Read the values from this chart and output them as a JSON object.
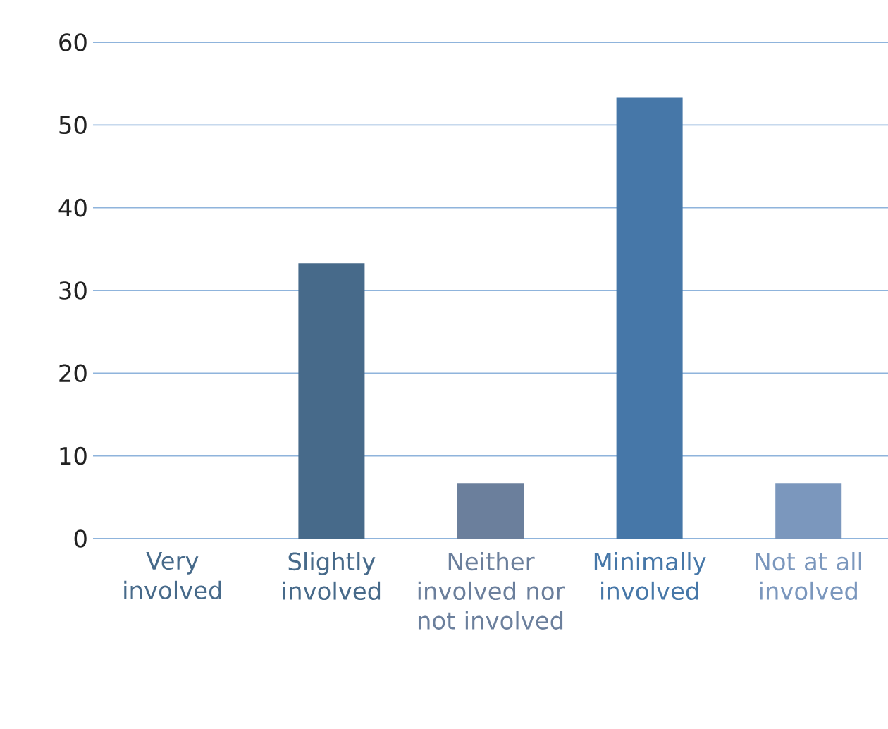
{
  "chart_data": {
    "type": "bar",
    "categories": [
      "Very involved",
      "Slightly involved",
      "Neither involved nor not involved",
      "Minimally involved",
      "Not at all involved"
    ],
    "values": [
      0,
      33.3,
      6.7,
      53.3,
      6.7
    ],
    "colors": [
      "#476a8a",
      "#476a8a",
      "#6b7f9c",
      "#4677a8",
      "#7b97bd"
    ],
    "ylim": [
      0,
      60
    ],
    "yticks": [
      0,
      10,
      20,
      30,
      40,
      50,
      60
    ],
    "grid": "y"
  }
}
